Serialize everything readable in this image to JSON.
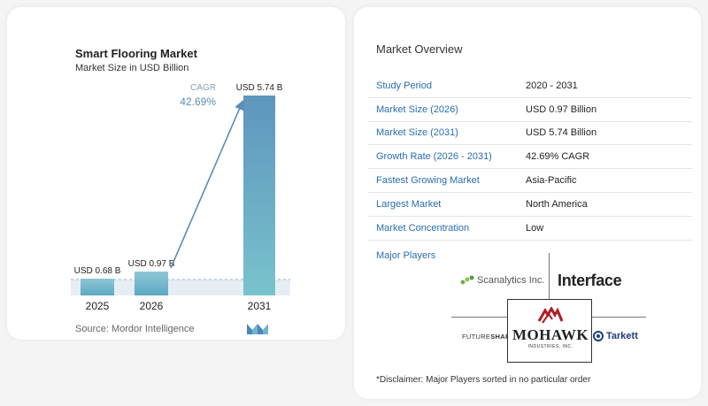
{
  "chart_data": {
    "type": "bar",
    "title": "Smart Flooring Market",
    "subtitle": "Market Size in USD Billion",
    "categories": [
      "2025",
      "2026",
      "2031"
    ],
    "values": [
      0.68,
      0.97,
      5.74
    ],
    "data_labels": [
      "USD 0.68 B",
      "USD 0.97 B",
      "USD 5.74 B"
    ],
    "cagr_label": "CAGR",
    "cagr_value": "42.69%",
    "ylim": [
      0,
      5.74
    ],
    "colors": {
      "small_bar_top": "#8fc6d6",
      "small_bar_bottom": "#5ba9c2",
      "big_bar_top": "#5e95bd",
      "big_bar_bottom": "#79c3cd",
      "arrow": "#5b8db8",
      "cagr_label": "#8aa0b3",
      "cagr_value": "#5b8db8"
    }
  },
  "source": "Source: Mordor Intelligence",
  "overview": {
    "title": "Market Overview",
    "rows": [
      {
        "key": "Study Period",
        "value": "2020 - 2031"
      },
      {
        "key": "Market Size (2026)",
        "value": "USD 0.97 Billion"
      },
      {
        "key": "Market Size (2031)",
        "value": "USD 5.74 Billion"
      },
      {
        "key": "Growth Rate (2026 - 2031)",
        "value": "42.69% CAGR"
      },
      {
        "key": "Fastest Growing Market",
        "value": "Asia-Pacific"
      },
      {
        "key": "Largest Market",
        "value": "North America"
      },
      {
        "key": "Market Concentration",
        "value": "Low"
      }
    ]
  },
  "major_players": {
    "title": "Major Players",
    "logos": {
      "scanalytics": "Scanalytics Inc.",
      "interface": "Interface",
      "futureshape_a": "FUTURE",
      "futureshape_b": "SHAPE",
      "mohawk": "MOHAWK",
      "mohawk_sub": "INDUSTRIES, INC.",
      "tarkett": "Tarkett"
    }
  },
  "disclaimer": "*Disclaimer: Major Players sorted in no particular order"
}
